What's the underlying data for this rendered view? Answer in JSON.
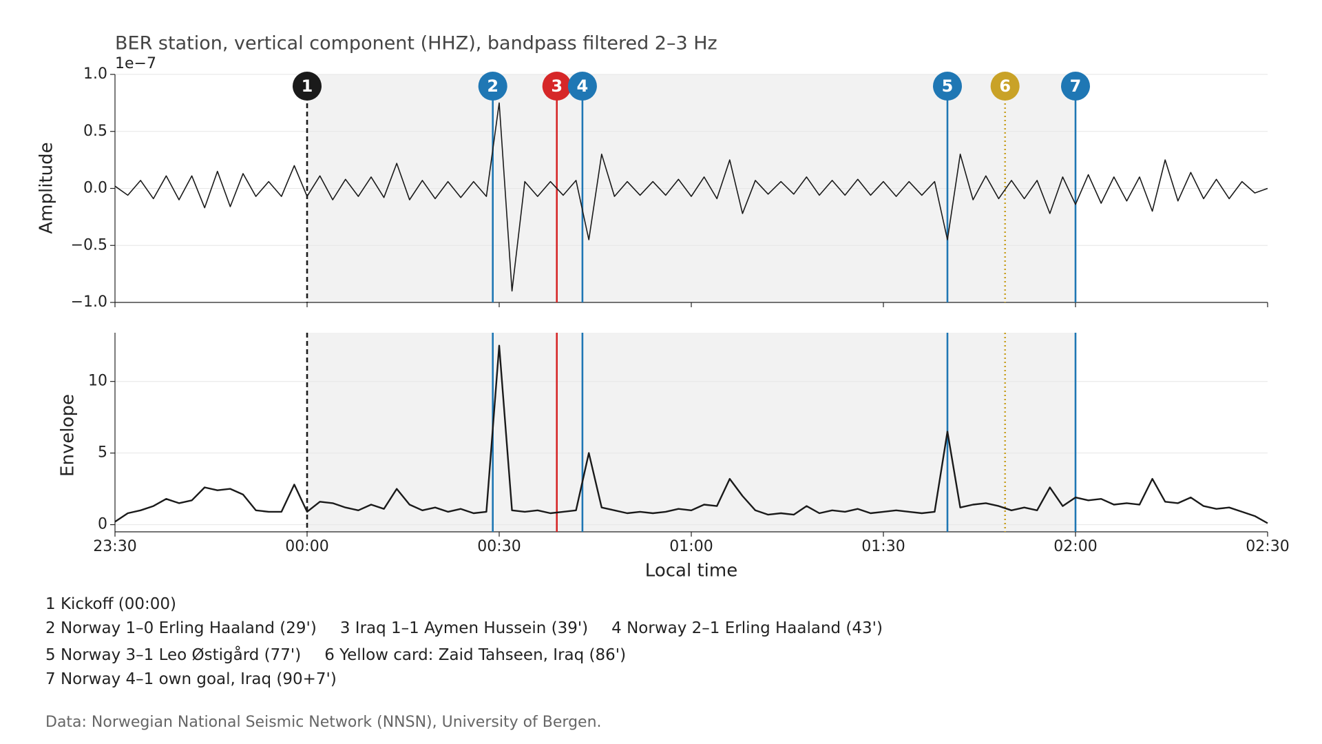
{
  "chart_data": [
    {
      "type": "line",
      "title": "BER station, vertical component (HHZ), bandpass filtered 2–3 Hz",
      "offset_label": "1e−7",
      "ylabel": "Amplitude",
      "x": [
        "23:30",
        "23:32",
        "23:34",
        "23:36",
        "23:38",
        "23:40",
        "23:42",
        "23:44",
        "23:46",
        "23:48",
        "23:50",
        "23:52",
        "23:54",
        "23:56",
        "23:58",
        "00:00",
        "00:02",
        "00:04",
        "00:06",
        "00:08",
        "00:10",
        "00:12",
        "00:14",
        "00:16",
        "00:18",
        "00:20",
        "00:22",
        "00:24",
        "00:26",
        "00:28",
        "00:30",
        "00:32",
        "00:34",
        "00:36",
        "00:38",
        "00:40",
        "00:42",
        "00:44",
        "00:46",
        "00:48",
        "00:50",
        "00:52",
        "00:54",
        "00:56",
        "00:58",
        "01:00",
        "01:02",
        "01:04",
        "01:06",
        "01:08",
        "01:10",
        "01:12",
        "01:14",
        "01:16",
        "01:18",
        "01:20",
        "01:22",
        "01:24",
        "01:26",
        "01:28",
        "01:30",
        "01:32",
        "01:34",
        "01:36",
        "01:38",
        "01:40",
        "01:42",
        "01:44",
        "01:46",
        "01:48",
        "01:50",
        "01:52",
        "01:54",
        "01:56",
        "01:58",
        "02:00",
        "02:02",
        "02:04",
        "02:06",
        "02:08",
        "02:10",
        "02:12",
        "02:14",
        "02:16",
        "02:18",
        "02:20",
        "02:22",
        "02:24",
        "02:26",
        "02:28",
        "02:30"
      ],
      "series": [
        {
          "color": "#1a1a1a",
          "values": [
            0.02,
            -0.06,
            0.07,
            -0.09,
            0.11,
            -0.1,
            0.11,
            -0.17,
            0.15,
            -0.16,
            0.13,
            -0.07,
            0.06,
            -0.07,
            0.2,
            -0.07,
            0.11,
            -0.1,
            0.08,
            -0.07,
            0.1,
            -0.08,
            0.22,
            -0.1,
            0.07,
            -0.09,
            0.06,
            -0.08,
            0.06,
            -0.07,
            0.75,
            -0.9,
            0.06,
            -0.07,
            0.06,
            -0.06,
            0.07,
            -0.45,
            0.3,
            -0.07,
            0.06,
            -0.06,
            0.06,
            -0.06,
            0.08,
            -0.07,
            0.1,
            -0.09,
            0.25,
            -0.22,
            0.07,
            -0.05,
            0.06,
            -0.05,
            0.1,
            -0.06,
            0.07,
            -0.06,
            0.08,
            -0.06,
            0.06,
            -0.07,
            0.06,
            -0.06,
            0.06,
            -0.45,
            0.3,
            -0.1,
            0.11,
            -0.09,
            0.07,
            -0.09,
            0.07,
            -0.22,
            0.1,
            -0.14,
            0.12,
            -0.13,
            0.1,
            -0.11,
            0.1,
            -0.2,
            0.25,
            -0.11,
            0.14,
            -0.09,
            0.08,
            -0.09,
            0.06,
            -0.04,
            0.0
          ]
        }
      ],
      "xlim": [
        "23:30",
        "02:30"
      ],
      "xticks": [
        "23:30",
        "00:00",
        "00:30",
        "01:00",
        "01:30",
        "02:00",
        "02:30"
      ],
      "ylim": [
        -1,
        1
      ],
      "yticks": [
        {
          "value": -1,
          "label": "−1.0"
        },
        {
          "value": -0.5,
          "label": "−0.5"
        },
        {
          "value": 0,
          "label": "0.0"
        },
        {
          "value": 0.5,
          "label": "0.5"
        },
        {
          "value": 1,
          "label": "1.0"
        }
      ],
      "grid": true,
      "shade": [
        "00:00",
        "02:00"
      ]
    },
    {
      "type": "line",
      "ylabel": "Envelope",
      "xlabel": "Local time",
      "x": [
        "23:30",
        "23:32",
        "23:34",
        "23:36",
        "23:38",
        "23:40",
        "23:42",
        "23:44",
        "23:46",
        "23:48",
        "23:50",
        "23:52",
        "23:54",
        "23:56",
        "23:58",
        "00:00",
        "00:02",
        "00:04",
        "00:06",
        "00:08",
        "00:10",
        "00:12",
        "00:14",
        "00:16",
        "00:18",
        "00:20",
        "00:22",
        "00:24",
        "00:26",
        "00:28",
        "00:30",
        "00:32",
        "00:34",
        "00:36",
        "00:38",
        "00:40",
        "00:42",
        "00:44",
        "00:46",
        "00:48",
        "00:50",
        "00:52",
        "00:54",
        "00:56",
        "00:58",
        "01:00",
        "01:02",
        "01:04",
        "01:06",
        "01:08",
        "01:10",
        "01:12",
        "01:14",
        "01:16",
        "01:18",
        "01:20",
        "01:22",
        "01:24",
        "01:26",
        "01:28",
        "01:30",
        "01:32",
        "01:34",
        "01:36",
        "01:38",
        "01:40",
        "01:42",
        "01:44",
        "01:46",
        "01:48",
        "01:50",
        "01:52",
        "01:54",
        "01:56",
        "01:58",
        "02:00",
        "02:02",
        "02:04",
        "02:06",
        "02:08",
        "02:10",
        "02:12",
        "02:14",
        "02:16",
        "02:18",
        "02:20",
        "02:22",
        "02:24",
        "02:26",
        "02:28",
        "02:30"
      ],
      "series": [
        {
          "color": "#1a1a1a",
          "values": [
            0.2,
            0.8,
            1.0,
            1.3,
            1.8,
            1.5,
            1.7,
            2.6,
            2.4,
            2.5,
            2.1,
            1.0,
            0.9,
            0.9,
            2.8,
            0.9,
            1.6,
            1.5,
            1.2,
            1.0,
            1.4,
            1.1,
            2.5,
            1.4,
            1.0,
            1.2,
            0.9,
            1.1,
            0.8,
            0.9,
            12.5,
            1.0,
            0.9,
            1.0,
            0.8,
            0.9,
            1.0,
            5.0,
            1.2,
            1.0,
            0.8,
            0.9,
            0.8,
            0.9,
            1.1,
            1.0,
            1.4,
            1.3,
            3.2,
            2.0,
            1.0,
            0.7,
            0.8,
            0.7,
            1.3,
            0.8,
            1.0,
            0.9,
            1.1,
            0.8,
            0.9,
            1.0,
            0.9,
            0.8,
            0.9,
            6.5,
            1.2,
            1.4,
            1.5,
            1.3,
            1.0,
            1.2,
            1.0,
            2.6,
            1.3,
            1.9,
            1.7,
            1.8,
            1.4,
            1.5,
            1.4,
            3.2,
            1.6,
            1.5,
            1.9,
            1.3,
            1.1,
            1.2,
            0.9,
            0.6,
            0.1
          ]
        }
      ],
      "xlim": [
        "23:30",
        "02:30"
      ],
      "xticks": [
        "23:30",
        "00:00",
        "00:30",
        "01:00",
        "01:30",
        "02:00",
        "02:30"
      ],
      "ylim": [
        -0.5,
        13.4
      ],
      "yticks": [
        0,
        5,
        10
      ],
      "grid": true,
      "shade": [
        "00:00",
        "02:00"
      ]
    }
  ],
  "events": [
    {
      "label": "1",
      "x": "00:00",
      "color": "#1a1a1a",
      "style": "dashed"
    },
    {
      "label": "2",
      "x": "00:29",
      "color": "#1f77b4",
      "style": "solid"
    },
    {
      "label": "3",
      "x": "00:39",
      "color": "#d62728",
      "style": "solid"
    },
    {
      "label": "4",
      "x": "00:43",
      "color": "#1f77b4",
      "style": "solid"
    },
    {
      "label": "5",
      "x": "01:40",
      "color": "#1f77b4",
      "style": "solid"
    },
    {
      "label": "6",
      "x": "01:49",
      "color": "#c9a227",
      "style": "dotted"
    },
    {
      "label": "7",
      "x": "02:00",
      "color": "#1f77b4",
      "style": "solid"
    }
  ],
  "notes": [
    [
      "1 Kickoff (00:00)"
    ],
    [
      "2 Norway 1–0 Erling Haaland (29')",
      "3 Iraq 1–1 Aymen Hussein (39')",
      "4 Norway 2–1 Erling Haaland (43')"
    ],
    [
      "5 Norway 3–1 Leo Østigård (77')",
      "6 Yellow card: Zaid Tahseen, Iraq (86')"
    ],
    [
      "7 Norway 4–1 own goal, Iraq (90+7')"
    ]
  ],
  "source": "Data: Norwegian National Seismic Network (NNSN), University of Bergen."
}
